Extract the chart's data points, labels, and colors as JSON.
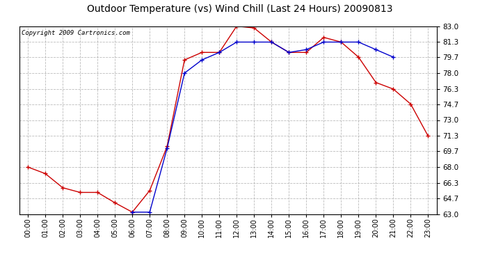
{
  "title": "Outdoor Temperature (vs) Wind Chill (Last 24 Hours) 20090813",
  "copyright_text": "Copyright 2009 Cartronics.com",
  "x_labels": [
    "00:00",
    "01:00",
    "02:00",
    "03:00",
    "04:00",
    "05:00",
    "06:00",
    "07:00",
    "08:00",
    "09:00",
    "10:00",
    "11:00",
    "12:00",
    "13:00",
    "14:00",
    "15:00",
    "16:00",
    "17:00",
    "18:00",
    "19:00",
    "20:00",
    "21:00",
    "22:00",
    "23:00"
  ],
  "y_ticks": [
    63.0,
    64.7,
    66.3,
    68.0,
    69.7,
    71.3,
    73.0,
    74.7,
    76.3,
    78.0,
    79.7,
    81.3,
    83.0
  ],
  "ylim": [
    63.0,
    83.0
  ],
  "temp_red": [
    68.0,
    67.3,
    65.8,
    65.3,
    65.3,
    64.2,
    63.2,
    65.5,
    70.2,
    79.4,
    80.2,
    80.2,
    83.0,
    82.8,
    81.3,
    80.2,
    80.2,
    81.8,
    81.3,
    79.7,
    77.0,
    76.3,
    74.7,
    71.3
  ],
  "wind_chill_blue": [
    null,
    null,
    null,
    null,
    null,
    null,
    63.2,
    63.2,
    70.0,
    78.0,
    79.4,
    80.2,
    81.3,
    81.3,
    81.3,
    80.2,
    80.5,
    81.3,
    81.3,
    81.3,
    80.5,
    79.7,
    null,
    null
  ],
  "red_color": "#cc0000",
  "blue_color": "#0000cc",
  "grid_color": "#aaaaaa",
  "bg_color": "#ffffff",
  "title_fontsize": 10,
  "copyright_fontsize": 6.5
}
